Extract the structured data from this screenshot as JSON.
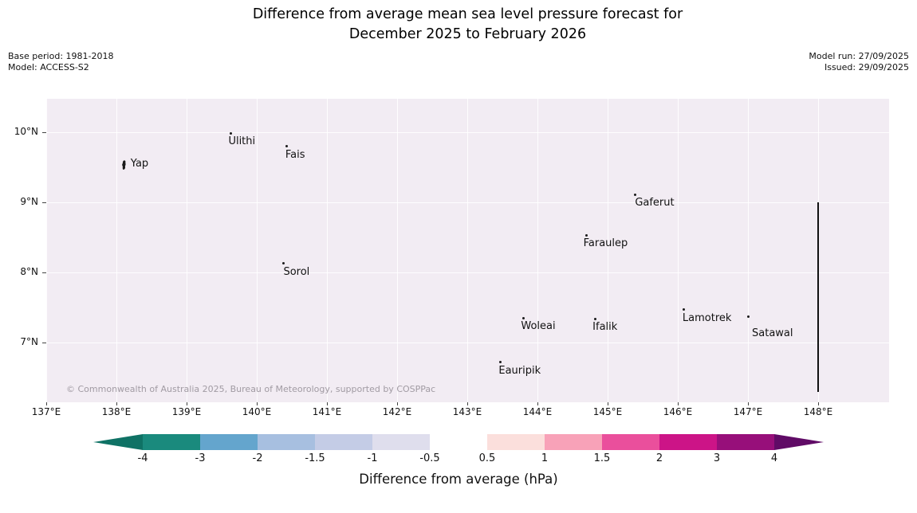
{
  "title": {
    "line1": "Difference from average mean sea level pressure forecast for",
    "line2": "December 2025 to February 2026"
  },
  "meta": {
    "base_period": "Base period: 1981-2018",
    "model": "Model: ACCESS-S2",
    "model_run": "Model run: 27/09/2025",
    "issued": "Issued: 29/09/2025"
  },
  "map": {
    "copyright": "© Commonwealth of Australia 2025, Bureau of Meteorology, supported by COSPPac",
    "fill_color": "#f2ecf3"
  },
  "chart_data": {
    "type": "heatmap",
    "title": "Difference from average mean sea level pressure forecast for December 2025 to February 2026",
    "x_tick_labels": [
      "137°E",
      "138°E",
      "139°E",
      "140°E",
      "141°E",
      "142°E",
      "143°E",
      "144°E",
      "145°E",
      "146°E",
      "147°E",
      "148°E"
    ],
    "y_tick_labels": [
      "10°N",
      "9°N",
      "8°N",
      "7°N"
    ],
    "x_ticks_deg_e": [
      137,
      138,
      139,
      140,
      141,
      142,
      143,
      144,
      145,
      146,
      147,
      148
    ],
    "y_ticks_deg_n": [
      10,
      9,
      8,
      7
    ],
    "x_range_deg_e": [
      137,
      149
    ],
    "y_range_deg_n": [
      6.2,
      10.5
    ],
    "grid": true,
    "field": {
      "description": "Mean sea level pressure anomaly field rendered as a single uniform pale shade across the whole domain",
      "uniform_fill_color": "#f2ecf3",
      "boundary_line_lon_e": 148,
      "boundary_line_lat_span_n": [
        6.3,
        9.0
      ]
    },
    "stations": [
      {
        "name": "Yap",
        "lon_e": 138.1,
        "lat_n": 9.53,
        "marker": "island-outline",
        "label_offset": [
          9,
          -9
        ]
      },
      {
        "name": "Ulithi",
        "lon_e": 139.63,
        "lat_n": 9.98,
        "marker": "dot",
        "label_offset": [
          -3,
          2
        ]
      },
      {
        "name": "Fais",
        "lon_e": 140.43,
        "lat_n": 9.8,
        "marker": "dot",
        "label_offset": [
          -2,
          3
        ]
      },
      {
        "name": "Gaferut",
        "lon_e": 145.39,
        "lat_n": 9.11,
        "marker": "dot",
        "label_offset": [
          0,
          3
        ]
      },
      {
        "name": "Faraulep",
        "lon_e": 144.7,
        "lat_n": 8.53,
        "marker": "dot",
        "label_offset": [
          -4,
          3
        ]
      },
      {
        "name": "Sorol",
        "lon_e": 140.38,
        "lat_n": 8.13,
        "marker": "dot",
        "label_offset": [
          0,
          3
        ]
      },
      {
        "name": "Woleai",
        "lon_e": 143.8,
        "lat_n": 7.35,
        "marker": "dot",
        "label_offset": [
          -3,
          3
        ]
      },
      {
        "name": "Ifalik",
        "lon_e": 144.82,
        "lat_n": 7.34,
        "marker": "dot",
        "label_offset": [
          -3,
          3
        ]
      },
      {
        "name": "Lamotrek",
        "lon_e": 146.09,
        "lat_n": 7.47,
        "marker": "dot",
        "label_offset": [
          -2,
          3
        ]
      },
      {
        "name": "Satawal",
        "lon_e": 147.0,
        "lat_n": 7.37,
        "marker": "dot",
        "label_offset": [
          5,
          14
        ]
      },
      {
        "name": "Eauripik",
        "lon_e": 143.47,
        "lat_n": 6.72,
        "marker": "dot",
        "label_offset": [
          -2,
          3
        ]
      }
    ],
    "colorbar": {
      "label": "Difference from average (hPa)",
      "ticks": [
        -4,
        -3,
        -2,
        -1.5,
        -1,
        -0.5,
        0.5,
        1,
        1.5,
        2,
        3,
        4
      ],
      "tick_labels": [
        "-4",
        "-3",
        "-2",
        "-1.5",
        "-1",
        "-0.5",
        "0.5",
        "1",
        "1.5",
        "2",
        "3",
        "4"
      ],
      "extend": "both",
      "arrow_left_color": "#0f7265",
      "arrow_right_color": "#600b66",
      "segment_colors": [
        "#1a8a7d",
        "#64a5cd",
        "#a7bfe0",
        "#c4cce6",
        "#dfdeed",
        "#ffffff",
        "#fbdfdc",
        "#f8a2b8",
        "#ea4f9c",
        "#cc1487",
        "#970f7a"
      ]
    }
  }
}
